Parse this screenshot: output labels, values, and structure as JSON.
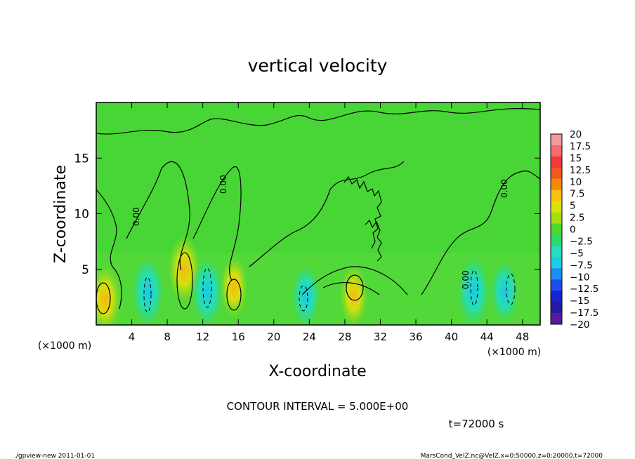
{
  "chart_data": {
    "type": "heatmap",
    "title": "vertical velocity",
    "xlabel": "X-coordinate",
    "ylabel": "Z-coordinate",
    "x_unit": "(×1000 m)",
    "z_unit": "(×1000 m)",
    "xlim": [
      0,
      50
    ],
    "ylim": [
      0,
      20
    ],
    "x_ticks": [
      "4",
      "8",
      "12",
      "16",
      "20",
      "24",
      "28",
      "32",
      "36",
      "40",
      "44",
      "48"
    ],
    "x_tick_values": [
      4,
      8,
      12,
      16,
      20,
      24,
      28,
      32,
      36,
      40,
      44,
      48
    ],
    "y_ticks": [
      "5",
      "10",
      "15"
    ],
    "y_tick_values": [
      5,
      10,
      15
    ],
    "contour_interval_label": "CONTOUR INTERVAL = 5.000E+00",
    "contour_labels": [
      "0.00",
      "0.00",
      "0.00",
      "0.00"
    ],
    "time_label": "t=72000 s",
    "colorbar": {
      "labels": [
        "20",
        "17.5",
        "15",
        "12.5",
        "10",
        "7.5",
        "5",
        "2.5",
        "0",
        "−2.5",
        "−5",
        "−7.5",
        "−10",
        "−12.5",
        "−15",
        "−17.5",
        "−20"
      ],
      "colors": [
        "#f49a9a",
        "#f46c6c",
        "#f23a3a",
        "#f25a1e",
        "#f58a0a",
        "#f7c312",
        "#d9e30a",
        "#a8df12",
        "#4ed82e",
        "#2ed86e",
        "#23e0c0",
        "#1ccde8",
        "#1a8ff0",
        "#1a50ee",
        "#1a22d2",
        "#241aa6",
        "#5a1a9c"
      ]
    },
    "features": [
      {
        "x": 1.0,
        "z": 2.3,
        "type": "updraft",
        "peak": 7.5
      },
      {
        "x": 9.9,
        "z": 5.0,
        "type": "updraft",
        "peak": 7.5
      },
      {
        "x": 15.5,
        "z": 3.4,
        "type": "updraft",
        "peak": 5
      },
      {
        "x": 29.0,
        "z": 2.6,
        "type": "updraft",
        "peak": 5
      },
      {
        "x": 5.8,
        "z": 3.0,
        "type": "downdraft",
        "peak": -7.5
      },
      {
        "x": 12.5,
        "z": 3.0,
        "type": "downdraft",
        "peak": -7.5
      },
      {
        "x": 23.6,
        "z": 2.6,
        "type": "downdraft",
        "peak": -5
      },
      {
        "x": 42.5,
        "z": 3.0,
        "type": "downdraft",
        "peak": -7.5
      },
      {
        "x": 46.0,
        "z": 3.0,
        "type": "downdraft",
        "peak": -5
      }
    ]
  },
  "footer": {
    "left": "./gpview-new   2011-01-01",
    "right": "MarsCond_VelZ.nc@VelZ,x=0:50000,z=0:20000,t=72000"
  }
}
